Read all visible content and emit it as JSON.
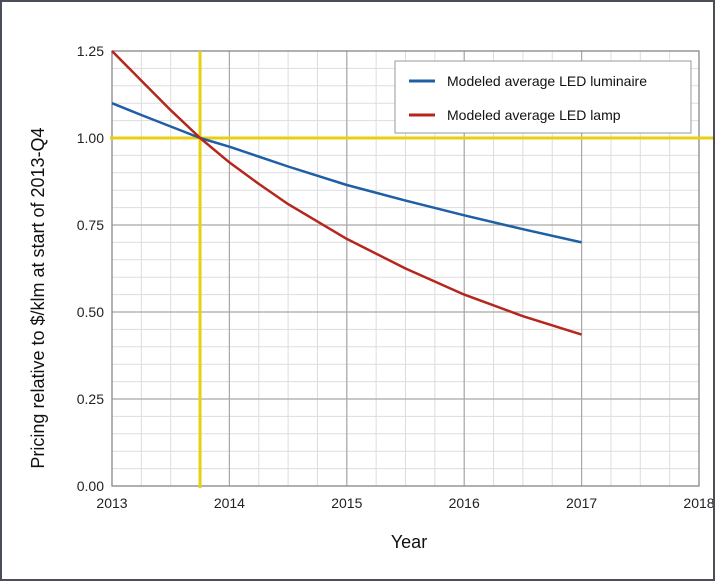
{
  "chart_data": {
    "type": "line",
    "xlabel": "Year",
    "ylabel": "Pricing relative to $/klm at start of 2013-Q4",
    "xlim": [
      2013,
      2018
    ],
    "ylim": [
      0,
      1.25
    ],
    "x_ticks": [
      "2013",
      "2014",
      "2015",
      "2016",
      "2017",
      "2018"
    ],
    "y_ticks": [
      "0.00",
      "0.25",
      "0.50",
      "0.75",
      "1.00",
      "1.25"
    ],
    "grid": true,
    "legend_position": "top-right",
    "reference_lines": {
      "x": 2013.75,
      "y": 1.0,
      "color": "#e8cf10"
    },
    "series": [
      {
        "name": "Modeled average LED luminaire",
        "color": "#1f5fa6",
        "x": [
          2013,
          2013.25,
          2013.5,
          2013.75,
          2014,
          2014.5,
          2015,
          2015.5,
          2016,
          2016.5,
          2017
        ],
        "y": [
          1.1,
          1.066,
          1.033,
          1.0,
          0.975,
          0.918,
          0.865,
          0.82,
          0.778,
          0.738,
          0.7
        ]
      },
      {
        "name": "Modeled average LED lamp",
        "color": "#b5261e",
        "x": [
          2013,
          2013.25,
          2013.5,
          2013.75,
          2014,
          2014.25,
          2014.5,
          2015,
          2015.5,
          2016,
          2016.5,
          2017
        ],
        "y": [
          1.25,
          1.165,
          1.08,
          1.0,
          0.93,
          0.868,
          0.81,
          0.71,
          0.625,
          0.55,
          0.488,
          0.435
        ]
      }
    ]
  }
}
